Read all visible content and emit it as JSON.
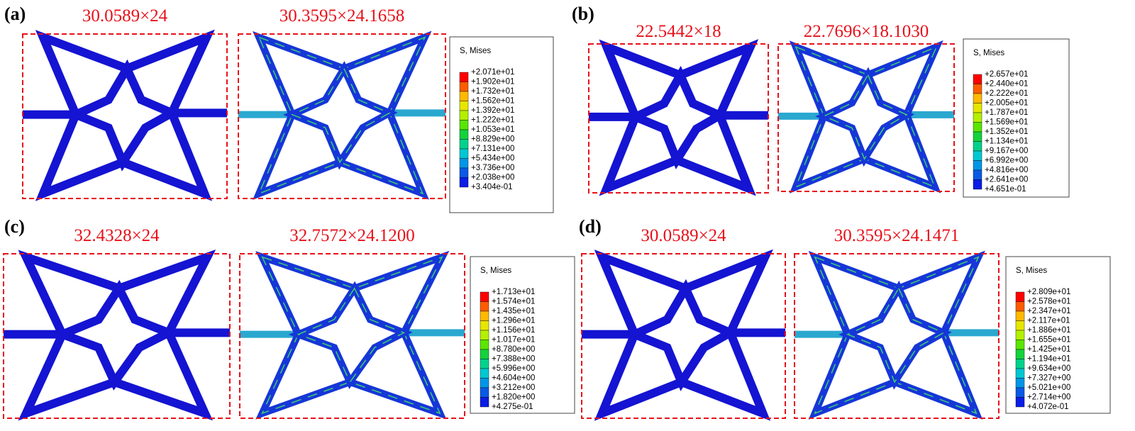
{
  "panels": [
    {
      "label": "(a)",
      "original_size": "30.0589×24",
      "deformed_size": "30.3595×24.1658",
      "legend": {
        "title": "S, Mises",
        "values": [
          "+2.071e+01",
          "+1.902e+01",
          "+1.732e+01",
          "+1.562e+01",
          "+1.392e+01",
          "+1.222e+01",
          "+1.053e+01",
          "+8.829e+00",
          "+7.131e+00",
          "+5.434e+00",
          "+3.736e+00",
          "+2.038e+00",
          "+3.404e-01"
        ]
      }
    },
    {
      "label": "(b)",
      "original_size": "22.5442×18",
      "deformed_size": "22.7696×18.1030",
      "legend": {
        "title": "S, Mises",
        "values": [
          "+2.657e+01",
          "+2.440e+01",
          "+2.222e+01",
          "+2.005e+01",
          "+1.787e+01",
          "+1.569e+01",
          "+1.352e+01",
          "+1.134e+01",
          "+9.167e+00",
          "+6.992e+00",
          "+4.816e+00",
          "+2.641e+00",
          "+4.651e-01"
        ]
      }
    },
    {
      "label": "(c)",
      "original_size": "32.4328×24",
      "deformed_size": "32.7572×24.1200",
      "legend": {
        "title": "S, Mises",
        "values": [
          "+1.713e+01",
          "+1.574e+01",
          "+1.435e+01",
          "+1.296e+01",
          "+1.156e+01",
          "+1.017e+01",
          "+8.780e+00",
          "+7.388e+00",
          "+5.996e+00",
          "+4.604e+00",
          "+3.212e+00",
          "+1.820e+00",
          "+4.275e-01"
        ]
      }
    },
    {
      "label": "(d)",
      "original_size": "30.0589×24",
      "deformed_size": "30.3595×24.1471",
      "legend": {
        "title": "S, Mises",
        "values": [
          "+2.809e+01",
          "+2.578e+01",
          "+2.347e+01",
          "+2.117e+01",
          "+1.886e+01",
          "+1.655e+01",
          "+1.425e+01",
          "+1.194e+01",
          "+9.634e+00",
          "+7.327e+00",
          "+5.021e+00",
          "+2.714e+00",
          "+4.072e-01"
        ]
      }
    }
  ]
}
